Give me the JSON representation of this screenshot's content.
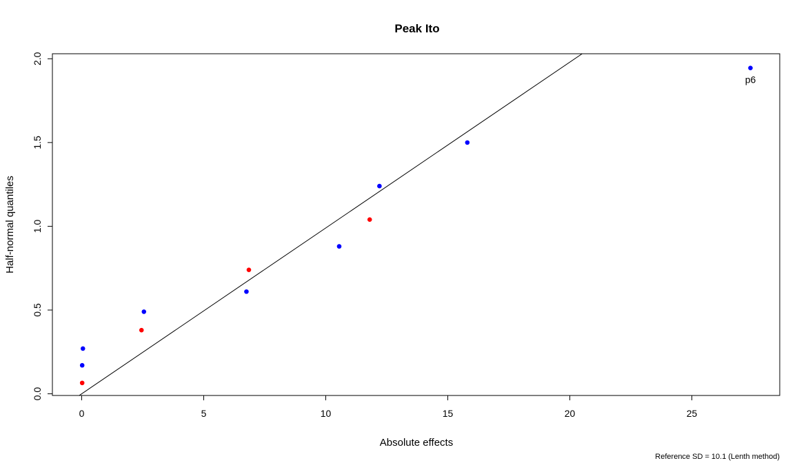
{
  "chart_data": {
    "type": "scatter",
    "title": "Peak Ito",
    "xlabel": "Absolute effects",
    "ylabel": "Half-normal quantiles",
    "xlim": [
      -1.2,
      28.6
    ],
    "ylim": [
      -0.01,
      2.03
    ],
    "x_ticks": [
      0,
      5,
      10,
      15,
      20,
      25
    ],
    "y_ticks": [
      0.0,
      0.5,
      1.0,
      1.5,
      2.0
    ],
    "x_tick_labels": [
      "0",
      "5",
      "10",
      "15",
      "20",
      "25"
    ],
    "y_tick_labels": [
      "0.0",
      "0.5",
      "1.0",
      "1.5",
      "2.0"
    ],
    "grid": false,
    "reference_line": {
      "intercept": 0,
      "slope": 0.099
    },
    "colors": {
      "blue": "#0000ff",
      "red": "#ff0000",
      "line": "#000000"
    },
    "points": [
      {
        "x": 0.02,
        "y": 0.065,
        "color": "red"
      },
      {
        "x": 0.02,
        "y": 0.17,
        "color": "blue"
      },
      {
        "x": 0.05,
        "y": 0.27,
        "color": "blue"
      },
      {
        "x": 2.45,
        "y": 0.38,
        "color": "red"
      },
      {
        "x": 2.55,
        "y": 0.49,
        "color": "blue"
      },
      {
        "x": 6.75,
        "y": 0.61,
        "color": "blue"
      },
      {
        "x": 6.85,
        "y": 0.74,
        "color": "red"
      },
      {
        "x": 10.55,
        "y": 0.88,
        "color": "blue"
      },
      {
        "x": 11.8,
        "y": 1.04,
        "color": "red"
      },
      {
        "x": 12.2,
        "y": 1.24,
        "color": "blue"
      },
      {
        "x": 15.8,
        "y": 1.5,
        "color": "blue"
      },
      {
        "x": 27.4,
        "y": 1.945,
        "color": "blue",
        "label": "p6"
      }
    ],
    "footnote": "Reference SD = 10.1 (Lenth method)"
  }
}
